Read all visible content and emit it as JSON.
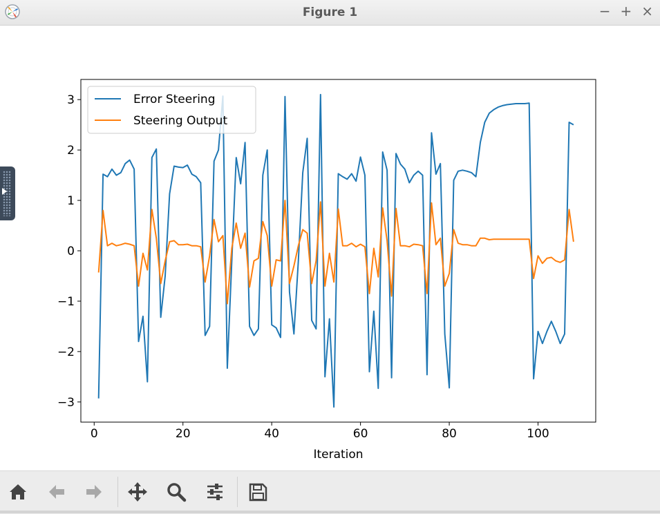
{
  "window": {
    "title": "Figure 1",
    "controls": [
      "−",
      "+",
      "×"
    ]
  },
  "toolbar": {
    "buttons": [
      "home-icon",
      "back-arrow-icon",
      "forward-arrow-icon",
      "pan-icon",
      "zoom-icon",
      "configure-subplots-icon",
      "save-icon"
    ]
  },
  "chart_data": {
    "type": "line",
    "title": "",
    "xlabel": "Iteration",
    "ylabel": "",
    "xlim": [
      -3,
      113
    ],
    "ylim": [
      -3.4,
      3.4
    ],
    "xticks": [
      0,
      20,
      40,
      60,
      80,
      100
    ],
    "yticks": [
      -3,
      -2,
      -1,
      0,
      1,
      2,
      3
    ],
    "ytick_labels": [
      "−3",
      "−2",
      "−1",
      "0",
      "1",
      "2",
      "3"
    ],
    "legend_position": "top-left",
    "grid": false,
    "x": [
      1,
      2,
      3,
      4,
      5,
      6,
      7,
      8,
      9,
      10,
      11,
      12,
      13,
      14,
      15,
      16,
      17,
      18,
      19,
      20,
      21,
      22,
      23,
      24,
      25,
      26,
      27,
      28,
      29,
      30,
      31,
      32,
      33,
      34,
      35,
      36,
      37,
      38,
      39,
      40,
      41,
      42,
      43,
      44,
      45,
      46,
      47,
      48,
      49,
      50,
      51,
      52,
      53,
      54,
      55,
      56,
      57,
      58,
      59,
      60,
      61,
      62,
      63,
      64,
      65,
      66,
      67,
      68,
      69,
      70,
      71,
      72,
      73,
      74,
      75,
      76,
      77,
      78,
      79,
      80,
      81,
      82,
      83,
      84,
      85,
      86,
      87,
      88,
      89,
      90,
      91,
      92,
      93,
      94,
      95,
      96,
      97,
      98,
      99,
      100,
      101,
      102,
      103,
      104,
      105,
      106,
      107,
      108
    ],
    "series": [
      {
        "name": "Error Steering",
        "color": "#1f77b4",
        "values": [
          -2.93,
          1.52,
          1.47,
          1.62,
          1.5,
          1.55,
          1.73,
          1.8,
          1.62,
          -1.8,
          -1.3,
          -2.6,
          1.85,
          2.02,
          -1.32,
          -0.5,
          1.13,
          1.68,
          1.66,
          1.65,
          1.7,
          1.52,
          1.47,
          1.35,
          -1.68,
          -1.5,
          1.78,
          2.0,
          3.07,
          -2.33,
          -0.2,
          1.85,
          1.33,
          2.15,
          -1.5,
          -1.68,
          -1.55,
          1.5,
          2.0,
          -1.47,
          -1.53,
          -1.72,
          3.06,
          -0.82,
          -1.65,
          -0.2,
          1.55,
          2.23,
          -1.38,
          -1.55,
          3.1,
          -2.5,
          -1.35,
          -3.1,
          1.53,
          1.47,
          1.42,
          1.53,
          1.38,
          1.86,
          1.5,
          -2.4,
          -1.2,
          -2.73,
          1.96,
          1.6,
          -2.52,
          1.93,
          1.72,
          1.62,
          1.35,
          1.5,
          1.58,
          1.5,
          -2.46,
          2.34,
          1.52,
          1.73,
          -1.65,
          -2.72,
          1.4,
          1.58,
          1.6,
          1.58,
          1.55,
          1.47,
          2.15,
          2.55,
          2.73,
          2.8,
          2.85,
          2.88,
          2.9,
          2.91,
          2.92,
          2.92,
          2.92,
          2.93,
          -2.54,
          -1.6,
          -1.84,
          -1.6,
          -1.4,
          -1.6,
          -1.84,
          -1.65,
          2.55,
          2.5
        ]
      },
      {
        "name": "Steering Output",
        "color": "#ff7f0e",
        "values": [
          -0.43,
          0.8,
          0.1,
          0.15,
          0.1,
          0.12,
          0.15,
          0.13,
          0.1,
          -0.7,
          -0.05,
          -0.38,
          0.82,
          0.25,
          -0.65,
          -0.2,
          0.18,
          0.2,
          0.12,
          0.12,
          0.13,
          0.1,
          0.1,
          0.08,
          -0.62,
          -0.1,
          0.62,
          0.18,
          0.3,
          -1.05,
          0.05,
          0.55,
          0.05,
          0.35,
          -0.72,
          -0.2,
          -0.15,
          0.58,
          0.3,
          -0.7,
          -0.18,
          -0.2,
          1.0,
          -0.65,
          -0.3,
          0.1,
          0.42,
          0.35,
          -0.65,
          -0.2,
          0.97,
          -0.7,
          -0.05,
          -0.62,
          0.83,
          0.1,
          0.1,
          0.15,
          0.08,
          0.13,
          0.08,
          -0.85,
          0.05,
          -0.52,
          0.85,
          0.2,
          -0.9,
          0.84,
          0.1,
          0.1,
          0.08,
          0.13,
          0.12,
          0.1,
          -0.85,
          0.95,
          0.12,
          0.25,
          -0.7,
          -0.45,
          0.42,
          0.15,
          0.12,
          0.12,
          0.1,
          0.1,
          0.25,
          0.25,
          0.22,
          0.23,
          0.23,
          0.23,
          0.23,
          0.23,
          0.23,
          0.23,
          0.23,
          0.23,
          -0.55,
          -0.1,
          -0.25,
          -0.15,
          -0.13,
          -0.2,
          -0.23,
          -0.18,
          0.82,
          0.18
        ]
      }
    ]
  }
}
